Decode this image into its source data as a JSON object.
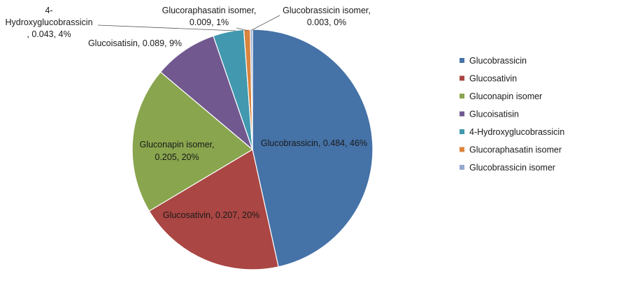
{
  "chart_data": {
    "type": "pie",
    "title": "",
    "start_angle_deg": 0,
    "direction": "clockwise",
    "legend_position": "right",
    "slices": [
      {
        "name": "Glucobrassicin",
        "value": 0.484,
        "percent_label": "46%",
        "color": "#4572A7",
        "data_label": "Glucobrassicin, 0.484, 46%"
      },
      {
        "name": "Glucosativin",
        "value": 0.207,
        "percent_label": "20%",
        "color": "#AA4643",
        "data_label": "Glucosativin, 0.207, 20%"
      },
      {
        "name": "Gluconapin isomer",
        "value": 0.205,
        "percent_label": "20%",
        "color": "#89A54E",
        "data_label": "Gluconapin isomer, 0.205, 20%"
      },
      {
        "name": "Glucoisatisin",
        "value": 0.089,
        "percent_label": "9%",
        "color": "#71588F",
        "data_label": "Glucoisatisin, 0.089, 9%"
      },
      {
        "name": "4-Hydroxyglucobrassicin",
        "value": 0.043,
        "percent_label": "4%",
        "color": "#4198AF",
        "data_label": "4-Hydroxyglucobrassicin, 0.043, 4%"
      },
      {
        "name": "Glucoraphasatin isomer",
        "value": 0.009,
        "percent_label": "1%",
        "color": "#DB843D",
        "data_label": "Glucoraphasatin isomer, 0.009, 1%"
      },
      {
        "name": "Glucobrassicin isomer",
        "value": 0.003,
        "percent_label": "0%",
        "color": "#93A9CF",
        "data_label": "Glucobrassicin isomer, 0.003, 0%"
      }
    ]
  }
}
